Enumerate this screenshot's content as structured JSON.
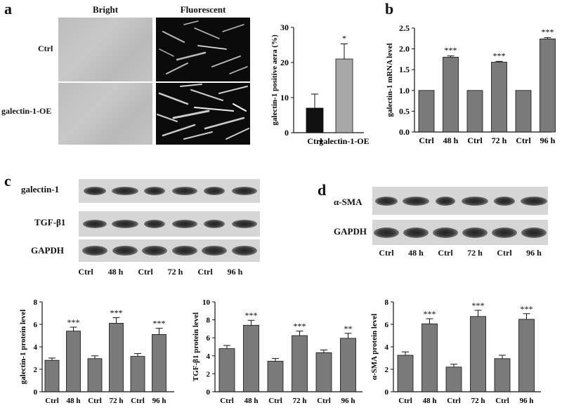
{
  "panel_a": {
    "label": "a",
    "col_bright": "Bright",
    "col_fluor": "Fluorescent",
    "row_ctrl": "Ctrl",
    "row_oe": "galectin-1-OE"
  },
  "panel_b": {
    "label": "b"
  },
  "panel_c": {
    "label": "c",
    "blots": [
      "galectin-1",
      "TGF-β1",
      "GAPDH"
    ],
    "lanes": [
      "Ctrl",
      "48 h",
      "Ctrl",
      "72 h",
      "Ctrl",
      "96 h"
    ]
  },
  "panel_d": {
    "label": "d",
    "blots": [
      "α-SMA",
      "GAPDH"
    ],
    "lanes": [
      "Ctrl",
      "48 h",
      "Ctrl",
      "72 h",
      "Ctrl",
      "96 h"
    ]
  },
  "colors": {
    "bar_dark": "#111111",
    "bar_grey": "#7a7a7a",
    "bar_light": "#a8a8a8"
  },
  "chart_data": [
    {
      "id": "a_area",
      "type": "bar",
      "categories": [
        "Ctrl",
        "galectin-1-OE"
      ],
      "values": [
        7,
        21
      ],
      "errors": [
        4,
        4.3
      ],
      "sig": [
        "",
        "*"
      ],
      "ylabel": "galectin-1 positive aera (%)",
      "ylim": [
        0,
        30
      ],
      "yticks": [
        0,
        10,
        20,
        30
      ]
    },
    {
      "id": "b_mrna",
      "type": "bar",
      "categories": [
        "Ctrl",
        "48 h",
        "Ctrl",
        "72 h",
        "Ctrl",
        "96 h"
      ],
      "values": [
        1.0,
        1.8,
        1.0,
        1.68,
        1.0,
        2.24
      ],
      "errors": [
        0,
        0.03,
        0,
        0.02,
        0,
        0.03
      ],
      "sig": [
        "",
        "***",
        "",
        "***",
        "",
        "***"
      ],
      "ylabel": "galectin-1 mRNA level",
      "ylim": [
        0,
        2.5
      ],
      "yticks": [
        0.0,
        0.5,
        1.0,
        1.5,
        2.0,
        2.5
      ],
      "ytickfmt": 1
    },
    {
      "id": "c1_gal",
      "type": "bar",
      "categories": [
        "Ctrl",
        "48 h",
        "Ctrl",
        "72 h",
        "Ctrl",
        "96 h"
      ],
      "values": [
        2.8,
        5.4,
        2.95,
        6.1,
        3.15,
        5.1
      ],
      "errors": [
        0.2,
        0.35,
        0.25,
        0.5,
        0.25,
        0.55
      ],
      "sig": [
        "",
        "***",
        "",
        "***",
        "",
        "***"
      ],
      "ylabel": "galectin-1 protein level",
      "ylim": [
        0,
        8
      ],
      "yticks": [
        0,
        2,
        4,
        6,
        8
      ]
    },
    {
      "id": "c2_tgf",
      "type": "bar",
      "categories": [
        "Ctrl",
        "48 h",
        "Ctrl",
        "72 h",
        "Ctrl",
        "96 h"
      ],
      "values": [
        4.8,
        7.4,
        3.4,
        6.25,
        4.35,
        5.95
      ],
      "errors": [
        0.35,
        0.55,
        0.3,
        0.5,
        0.3,
        0.55
      ],
      "sig": [
        "",
        "***",
        "",
        "***",
        "",
        "**"
      ],
      "ylabel": "TGF-β1 protein level",
      "ylim": [
        0,
        10
      ],
      "yticks": [
        0,
        2,
        4,
        6,
        8,
        10
      ]
    },
    {
      "id": "d_sma",
      "type": "bar",
      "categories": [
        "Ctrl",
        "48 h",
        "Ctrl",
        "72 h",
        "Ctrl",
        "96 h"
      ],
      "values": [
        3.25,
        6.05,
        2.2,
        6.7,
        2.95,
        6.45
      ],
      "errors": [
        0.3,
        0.45,
        0.25,
        0.55,
        0.3,
        0.5
      ],
      "sig": [
        "",
        "***",
        "",
        "***",
        "",
        "***"
      ],
      "ylabel": "α-SMA protein level",
      "ylim": [
        0,
        8
      ],
      "yticks": [
        0,
        2,
        4,
        6,
        8
      ]
    }
  ]
}
